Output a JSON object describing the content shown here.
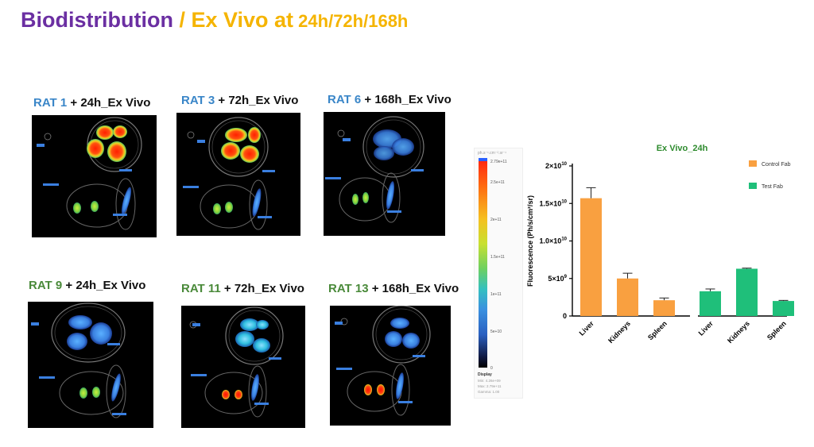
{
  "slide": {
    "title_part1": "Biodistribution",
    "title_sep": " / ",
    "title_part2": "Ex Vivo at",
    "title_part3": " 24h/72h/168h"
  },
  "panels": [
    {
      "rat": "RAT 1",
      "rest": " + 24h_Ex Vivo",
      "color": "blue"
    },
    {
      "rat": "RAT 3",
      "rest": " + 72h_Ex Vivo",
      "color": "blue"
    },
    {
      "rat": "RAT 6",
      "rest": " + 168h_Ex Vivo",
      "color": "blue"
    },
    {
      "rat": "RAT 9",
      "rest": " + 24h_Ex Vivo",
      "color": "green"
    },
    {
      "rat": "RAT 11",
      "rest": " + 72h_Ex Vivo",
      "color": "green"
    },
    {
      "rat": "RAT 13",
      "rest": " + 168h_Ex Vivo",
      "color": "green"
    }
  ],
  "colorscale": {
    "unit": "ph.s⁻¹.cm⁻².sr⁻¹",
    "ticks": [
      "2.79e+11",
      "2.5e+11",
      "2e+11",
      "1.5e+11",
      "1e+11",
      "5e+10",
      "0"
    ],
    "display_label": "Display",
    "min": "Min: 4.26e+09",
    "max": "Max: 2.79e+11",
    "gamma": "Gamma: 1.00"
  },
  "colors": {
    "control": "#f9a040",
    "test": "#1fbf7a",
    "title_green": "#2e8b2e"
  },
  "chart_data": {
    "type": "bar",
    "title": "Ex Vivo_24h",
    "ylabel": "Fluorescence (Ph/s/cm²/sr)",
    "ylim": [
      0,
      20000000000
    ],
    "yticks": [
      {
        "value": 0,
        "label": "0"
      },
      {
        "value": 5000000000,
        "base": "5×10",
        "exp": "9"
      },
      {
        "value": 10000000000,
        "base": "1.0×10",
        "exp": "10"
      },
      {
        "value": 15000000000,
        "base": "1.5×10",
        "exp": "10"
      },
      {
        "value": 20000000000,
        "base": "2×10",
        "exp": "10"
      }
    ],
    "legend_position": "top-right",
    "series": [
      {
        "name": "Control Fab",
        "categories": [
          "Liver",
          "Kidneys",
          "Spleen"
        ],
        "values": [
          15700000000,
          5000000000,
          2100000000
        ],
        "errors": [
          1400000000,
          700000000,
          300000000
        ]
      },
      {
        "name": "Test Fab",
        "categories": [
          "Liver",
          "Kidneys",
          "Spleen"
        ],
        "values": [
          3300000000,
          6300000000,
          2000000000
        ],
        "errors": [
          300000000,
          80000000,
          80000000
        ]
      }
    ]
  }
}
